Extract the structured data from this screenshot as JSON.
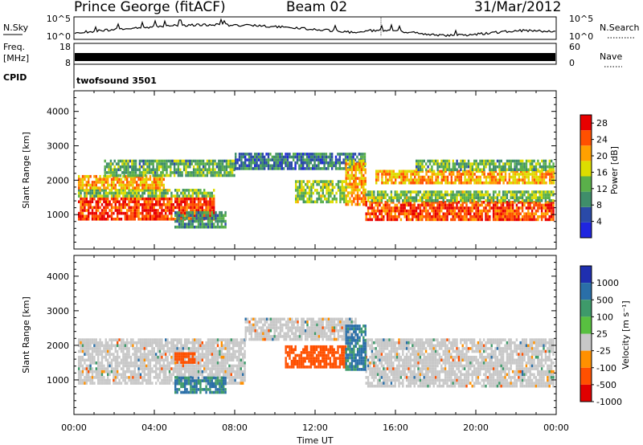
{
  "header": {
    "station": "Prince George (fitACF)",
    "beam": "Beam 02",
    "date": "31/Mar/2012"
  },
  "nsky_panel": {
    "label": "N.Sky",
    "right_label": "N.Search",
    "left_ticks": [
      "10^5",
      "10^0"
    ],
    "right_ticks": [
      "10^5",
      "10^0"
    ]
  },
  "freq_panel": {
    "label_line1": "Freq.",
    "label_line2": "[MHz]",
    "right_label": "Nave",
    "left_ticks": [
      "18",
      "8"
    ],
    "right_ticks": [
      "60",
      "0"
    ]
  },
  "cpid_panel": {
    "label": "CPID",
    "program": "twofsound 3501"
  },
  "colors": {
    "power_scale": [
      "#1f25e0",
      "#2a4aa8",
      "#3f8e6a",
      "#5ab04a",
      "#dddd00",
      "#ffa000",
      "#ff5000",
      "#e80000"
    ],
    "velocity_scale": [
      "#1f2fb0",
      "#2a6fa8",
      "#3e9a6a",
      "#58c040",
      "#c8c8c8",
      "#ff9000",
      "#ff5000",
      "#e00000"
    ]
  },
  "chart_data": [
    {
      "type": "heatmap",
      "name": "power",
      "ylabel": "Slant Range [km]",
      "ylim": [
        0,
        4600
      ],
      "yticks": [
        "1000",
        "2000",
        "3000",
        "4000"
      ],
      "xlim_hours": [
        0,
        24
      ],
      "colorbar": {
        "label": "Power [dB]",
        "ticks": [
          "4",
          "8",
          "12",
          "16",
          "20",
          "24",
          "28"
        ],
        "range": [
          0,
          30
        ]
      },
      "regions": [
        {
          "t0": 0.2,
          "t1": 7.0,
          "r0": 900,
          "r1": 1500,
          "level": 26
        },
        {
          "t0": 0.2,
          "t1": 7.0,
          "r0": 1500,
          "r1": 1750,
          "level": 14
        },
        {
          "t0": 0.2,
          "t1": 4.5,
          "r0": 1750,
          "r1": 2150,
          "level": 20
        },
        {
          "t0": 1.5,
          "t1": 8.0,
          "r0": 2150,
          "r1": 2600,
          "level": 12
        },
        {
          "t0": 8.0,
          "t1": 14.5,
          "r0": 2300,
          "r1": 2800,
          "level": 8
        },
        {
          "t0": 5.0,
          "t1": 7.5,
          "r0": 600,
          "r1": 1100,
          "level": 10
        },
        {
          "t0": 11.0,
          "t1": 13.5,
          "r0": 1400,
          "r1": 2000,
          "level": 14
        },
        {
          "t0": 13.5,
          "t1": 14.5,
          "r0": 1300,
          "r1": 2600,
          "level": 20
        },
        {
          "t0": 14.5,
          "t1": 23.9,
          "r0": 850,
          "r1": 1400,
          "level": 25
        },
        {
          "t0": 14.5,
          "t1": 23.9,
          "r0": 1400,
          "r1": 1700,
          "level": 14
        },
        {
          "t0": 15.0,
          "t1": 23.9,
          "r0": 1900,
          "r1": 2300,
          "level": 20
        },
        {
          "t0": 17.0,
          "t1": 23.9,
          "r0": 2300,
          "r1": 2600,
          "level": 12
        }
      ]
    },
    {
      "type": "heatmap",
      "name": "velocity",
      "ylabel": "Slant Range [km]",
      "ylim": [
        0,
        4600
      ],
      "yticks": [
        "1000",
        "2000",
        "3000",
        "4000"
      ],
      "xlim_hours": [
        0,
        24
      ],
      "xticks": [
        "00:00",
        "04:00",
        "08:00",
        "12:00",
        "16:00",
        "20:00",
        "00:00"
      ],
      "xlabel": "Time UT",
      "colorbar": {
        "label": "Velocity [m s⁻¹]",
        "ticks": [
          "-1000",
          "-500",
          "-100",
          "-25",
          "25",
          "100",
          "500",
          "1000"
        ]
      },
      "regions": [
        {
          "t0": 0.2,
          "t1": 8.5,
          "r0": 900,
          "r1": 2200,
          "vel": 0
        },
        {
          "t0": 8.5,
          "t1": 14.0,
          "r0": 2200,
          "r1": 2800,
          "vel": 0
        },
        {
          "t0": 14.5,
          "t1": 23.9,
          "r0": 850,
          "r1": 2200,
          "vel": 0
        },
        {
          "t0": 5.0,
          "t1": 7.5,
          "r0": 600,
          "r1": 1100,
          "vel": 120
        },
        {
          "t0": 10.5,
          "t1": 13.5,
          "r0": 1400,
          "r1": 2000,
          "vel": -300
        },
        {
          "t0": 13.5,
          "t1": 14.5,
          "r0": 1300,
          "r1": 2600,
          "vel": 150
        },
        {
          "t0": 5.0,
          "t1": 6.0,
          "r0": 1500,
          "r1": 1800,
          "vel": -200
        }
      ]
    }
  ]
}
